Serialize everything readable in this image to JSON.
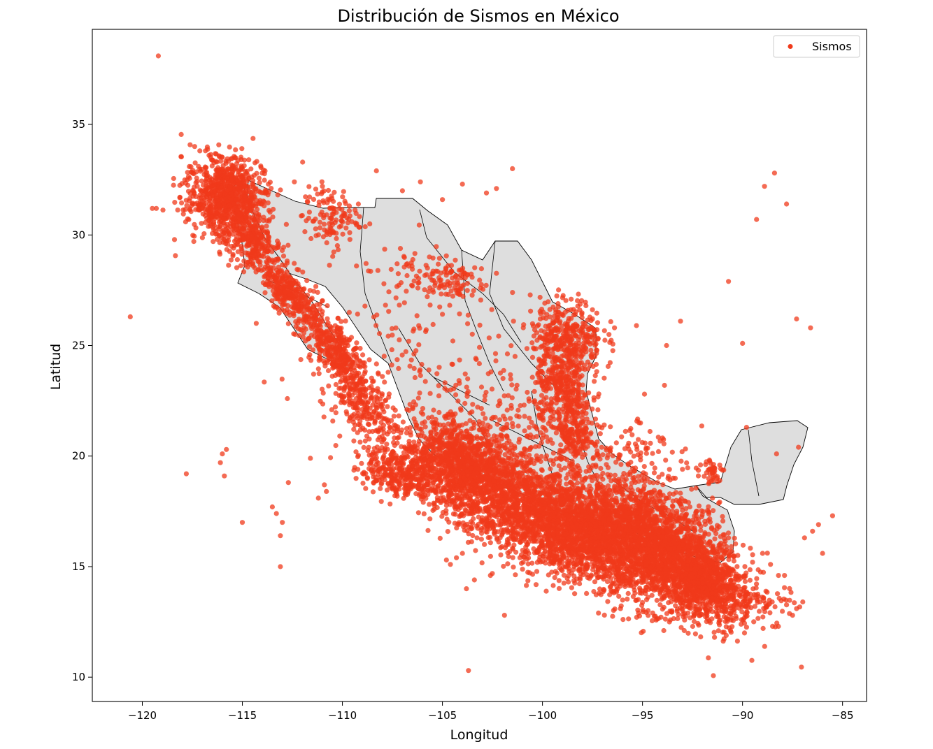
{
  "chart_data": {
    "type": "scatter",
    "title": "Distribución de Sismos en México",
    "xlabel": "Longitud",
    "ylabel": "Latitud",
    "xlim": [
      -122.5,
      -83.8
    ],
    "ylim": [
      8.9,
      39.3
    ],
    "xticks": [
      -120,
      -115,
      -110,
      -105,
      -100,
      -95,
      -90,
      -85
    ],
    "xtick_labels": [
      "−120",
      "−115",
      "−110",
      "−105",
      "−100",
      "−95",
      "−90",
      "−85"
    ],
    "yticks": [
      10,
      15,
      20,
      25,
      30,
      35
    ],
    "ytick_labels": [
      "10",
      "15",
      "20",
      "25",
      "30",
      "35"
    ],
    "grid": false,
    "legend": {
      "position": "top-right",
      "entries": [
        "Sismos"
      ]
    },
    "colors": {
      "point": "#f03a1b",
      "land": "#dedede",
      "border": "#000000"
    },
    "series": [
      {
        "name": "Sismos",
        "points": [
          [
            -119.2,
            38.1
          ],
          [
            -120.6,
            26.3
          ],
          [
            -119.5,
            31.2
          ],
          [
            -119.3,
            31.2
          ],
          [
            -117.8,
            19.2
          ],
          [
            -116.0,
            20.1
          ],
          [
            -115.8,
            20.3
          ],
          [
            -116.1,
            19.7
          ],
          [
            -115.9,
            19.1
          ],
          [
            -115.0,
            17.0
          ],
          [
            -113.5,
            17.7
          ],
          [
            -113.3,
            17.4
          ],
          [
            -113.0,
            17.0
          ],
          [
            -113.1,
            16.4
          ],
          [
            -113.1,
            15.0
          ],
          [
            -112.7,
            18.8
          ],
          [
            -111.2,
            18.1
          ],
          [
            -110.8,
            18.4
          ],
          [
            -111.6,
            19.9
          ],
          [
            -110.9,
            18.7
          ],
          [
            -103.7,
            10.3
          ],
          [
            -101.9,
            12.8
          ],
          [
            -101.5,
            33.0
          ],
          [
            -102.3,
            32.1
          ],
          [
            -102.8,
            31.9
          ],
          [
            -104.0,
            32.3
          ],
          [
            -105.0,
            31.6
          ],
          [
            -106.1,
            32.4
          ],
          [
            -107.0,
            32.0
          ],
          [
            -108.3,
            32.9
          ],
          [
            -109.2,
            31.4
          ],
          [
            -110.6,
            31.2
          ],
          [
            -111.0,
            32.2
          ],
          [
            -112.4,
            32.4
          ],
          [
            -113.7,
            32.3
          ],
          [
            -95.3,
            25.9
          ],
          [
            -96.4,
            25.8
          ],
          [
            -93.1,
            26.1
          ],
          [
            -93.8,
            25.0
          ],
          [
            -90.7,
            27.9
          ],
          [
            -90.0,
            25.1
          ],
          [
            -88.9,
            32.2
          ],
          [
            -88.4,
            32.8
          ],
          [
            -87.8,
            31.4
          ],
          [
            -89.3,
            30.7
          ],
          [
            -87.3,
            26.2
          ],
          [
            -86.6,
            25.8
          ],
          [
            -89.8,
            21.3
          ],
          [
            -88.3,
            20.1
          ],
          [
            -87.2,
            20.4
          ],
          [
            -86.5,
            16.6
          ],
          [
            -86.2,
            16.9
          ],
          [
            -85.5,
            17.3
          ],
          [
            -86.0,
            15.6
          ],
          [
            -86.9,
            16.3
          ],
          [
            -87.9,
            14.6
          ],
          [
            -87.3,
            13.1
          ],
          [
            -87.5,
            12.8
          ],
          [
            -88.5,
            12.3
          ],
          [
            -89.9,
            12.0
          ],
          [
            -91.4,
            11.8
          ],
          [
            -91.2,
            12.1
          ],
          [
            -95.2,
            12.9
          ],
          [
            -96.1,
            13.1
          ],
          [
            -97.2,
            12.9
          ],
          [
            -93.9,
            23.2
          ],
          [
            -94.9,
            22.8
          ],
          [
            -95.1,
            21.5
          ],
          [
            -94.2,
            20.2
          ],
          [
            -93.0,
            19.4
          ],
          [
            -92.1,
            19.6
          ],
          [
            -91.5,
            18.1
          ],
          [
            -92.7,
            17.9
          ],
          [
            -90.7,
            16.3
          ],
          [
            -89.5,
            15.2
          ],
          [
            -89.0,
            15.6
          ],
          [
            -88.6,
            15.1
          ],
          [
            -88.2,
            14.6
          ],
          [
            -104.3,
            15.4
          ],
          [
            -104.6,
            15.1
          ],
          [
            -104.0,
            15.6
          ],
          [
            -104.8,
            15.3
          ],
          [
            -103.4,
            14.4
          ],
          [
            -103.8,
            14.0
          ],
          [
            -102.6,
            14.6
          ]
        ]
      }
    ],
    "clusters": [
      {
        "center": [
          -115.8,
          31.7
        ],
        "spread": [
          1.0,
          0.9
        ],
        "count": 900,
        "angle": -35
      },
      {
        "center": [
          -114.4,
          29.6
        ],
        "spread": [
          0.8,
          0.5
        ],
        "count": 260,
        "angle": -40
      },
      {
        "center": [
          -112.7,
          27.4
        ],
        "spread": [
          0.9,
          0.4
        ],
        "count": 300,
        "angle": -45
      },
      {
        "center": [
          -110.4,
          24.8
        ],
        "spread": [
          1.1,
          0.5
        ],
        "count": 380,
        "angle": -50
      },
      {
        "center": [
          -108.9,
          22.3
        ],
        "spread": [
          1.0,
          0.6
        ],
        "count": 220,
        "angle": -45
      },
      {
        "center": [
          -110.6,
          30.8
        ],
        "spread": [
          0.7,
          0.7
        ],
        "count": 120,
        "angle": 0
      },
      {
        "center": [
          -104.8,
          27.9
        ],
        "spread": [
          1.0,
          0.5
        ],
        "count": 100,
        "angle": 0
      },
      {
        "center": [
          -106.6,
          28.3
        ],
        "spread": [
          1.2,
          0.6
        ],
        "count": 45,
        "angle": 0
      },
      {
        "center": [
          -104.0,
          24.2
        ],
        "spread": [
          1.6,
          1.4
        ],
        "count": 60,
        "angle": 0
      },
      {
        "center": [
          -98.8,
          25.3
        ],
        "spread": [
          0.9,
          0.9
        ],
        "count": 400,
        "angle": 0
      },
      {
        "center": [
          -99.0,
          23.1
        ],
        "spread": [
          0.7,
          0.7
        ],
        "count": 250,
        "angle": 0
      },
      {
        "center": [
          -98.4,
          21.0
        ],
        "spread": [
          0.5,
          0.8
        ],
        "count": 220,
        "angle": 0
      },
      {
        "center": [
          -100.6,
          21.4
        ],
        "spread": [
          1.4,
          0.9
        ],
        "count": 120,
        "angle": 0
      },
      {
        "center": [
          -103.8,
          19.4
        ],
        "spread": [
          1.7,
          1.0
        ],
        "count": 1500,
        "angle": -25
      },
      {
        "center": [
          -98.9,
          16.9
        ],
        "spread": [
          2.5,
          1.1
        ],
        "count": 2500,
        "angle": -20
      },
      {
        "center": [
          -94.3,
          15.9
        ],
        "spread": [
          2.1,
          1.2
        ],
        "count": 2200,
        "angle": -30
      },
      {
        "center": [
          -91.8,
          14.2
        ],
        "spread": [
          1.1,
          0.7
        ],
        "count": 700,
        "angle": -30
      },
      {
        "center": [
          -107.2,
          19.2
        ],
        "spread": [
          1.1,
          0.5
        ],
        "count": 320,
        "angle": -20
      },
      {
        "center": [
          -91.5,
          19.3
        ],
        "spread": [
          0.3,
          0.3
        ],
        "count": 40,
        "angle": 0
      },
      {
        "center": [
          -96.0,
          20.4
        ],
        "spread": [
          1.2,
          0.8
        ],
        "count": 90,
        "angle": 0
      },
      {
        "center": [
          -108.8,
          25.0
        ],
        "spread": [
          2.8,
          1.6
        ],
        "count": 70,
        "angle": 0
      },
      {
        "center": [
          -88.7,
          13.3
        ],
        "spread": [
          0.8,
          0.4
        ],
        "count": 60,
        "angle": 0
      }
    ]
  }
}
